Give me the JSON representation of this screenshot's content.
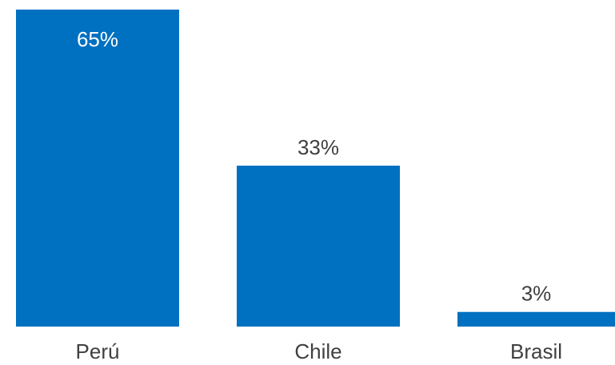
{
  "chart_data": {
    "type": "bar",
    "categories": [
      "Perú",
      "Chile",
      "Brasil"
    ],
    "values": [
      65,
      33,
      3
    ],
    "data_labels": [
      "65%",
      "33%",
      "3%"
    ],
    "title": "",
    "xlabel": "",
    "ylabel": "",
    "ylim": [
      0,
      65
    ],
    "grid": false,
    "legend": "none",
    "colors": {
      "bar": "#0070C0",
      "label_inside": "#FFFFFF",
      "label_outside": "#404040",
      "category_text": "#404040"
    }
  }
}
